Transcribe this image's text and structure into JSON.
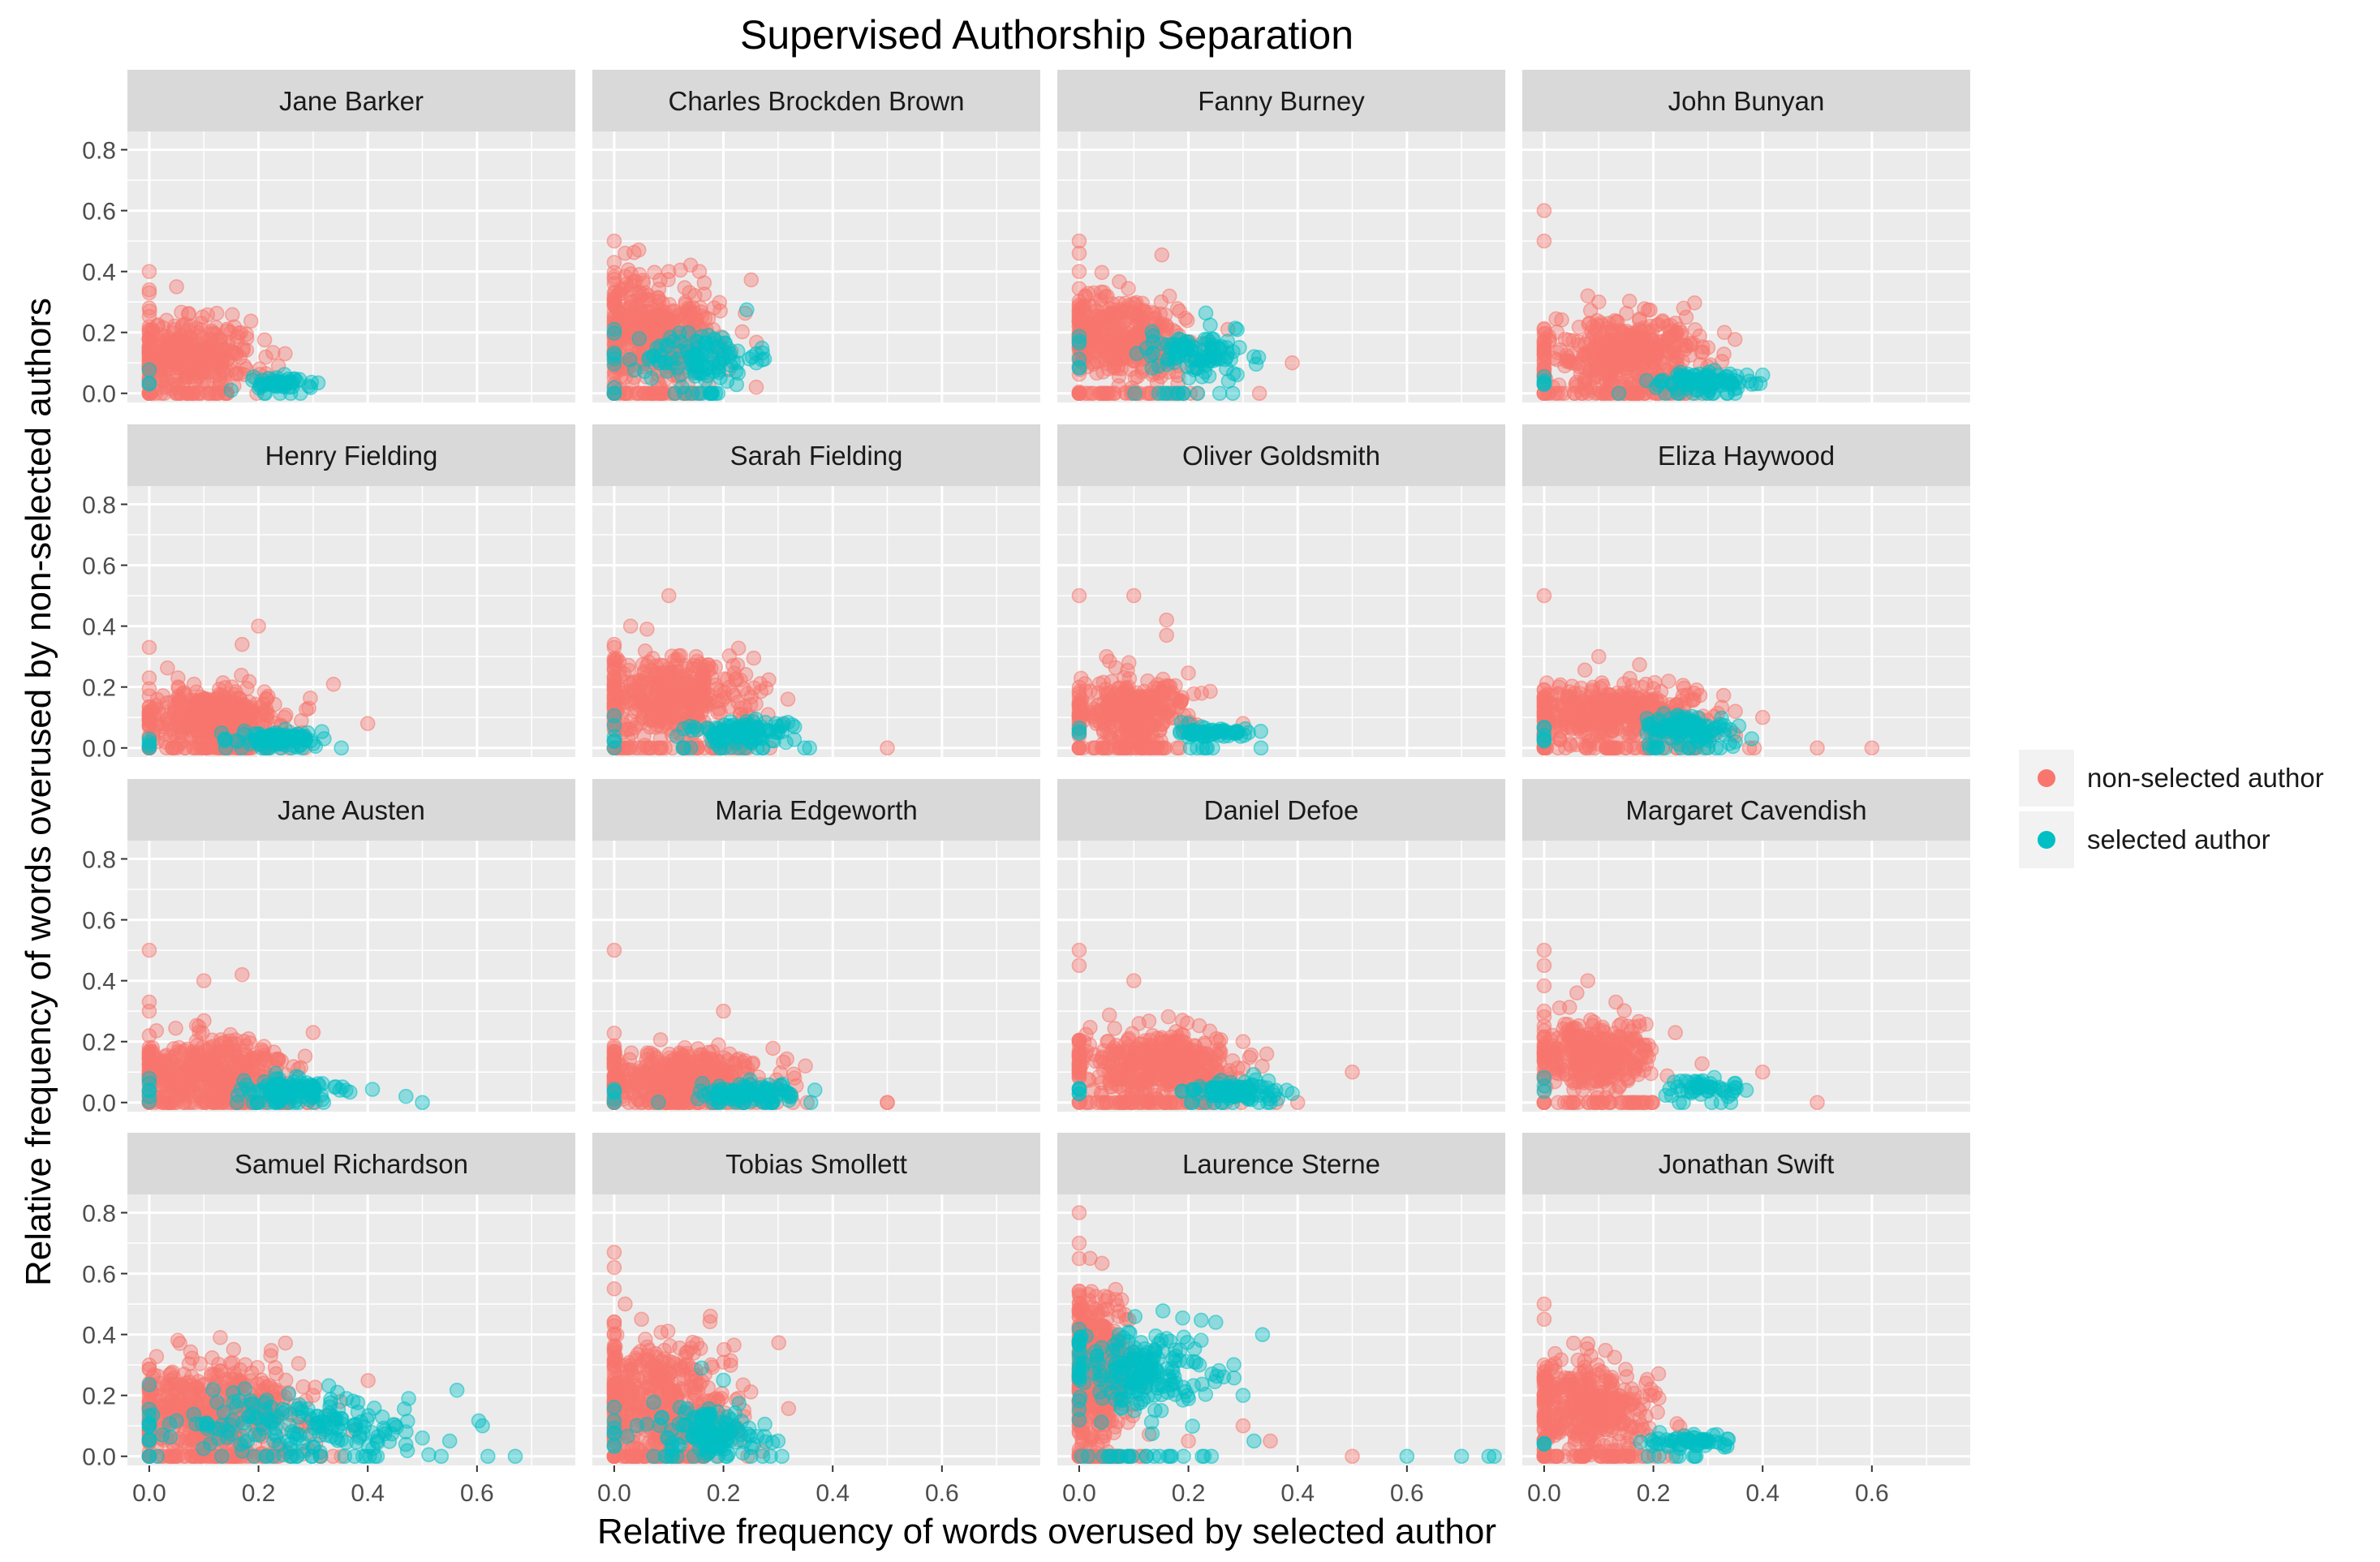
{
  "chart_data": {
    "type": "scatter",
    "title": "Supervised Authorship Separation",
    "xlabel": "Relative frequency of words overused by selected author",
    "ylabel": "Relative frequency of words overused by non-selected authors",
    "facet_layout": "4 x 4 grid, shared axes",
    "xlim": [
      -0.04,
      0.78
    ],
    "ylim": [
      -0.03,
      0.86
    ],
    "x_ticks": [
      "0.0",
      "0.2",
      "0.4",
      "0.6"
    ],
    "y_ticks": [
      "0.0",
      "0.2",
      "0.4",
      "0.6",
      "0.8"
    ],
    "grid": true,
    "legend_position": "right",
    "colors": {
      "non_selected": "#F8766D",
      "selected": "#00BFC4",
      "panel_bg": "#EBEBEB",
      "strip_bg": "#D9D9D9"
    },
    "legend": [
      {
        "label": "non-selected author",
        "color": "#F8766D"
      },
      {
        "label": "selected author",
        "color": "#00BFC4"
      }
    ],
    "facets": [
      {
        "label": "Jane Barker",
        "non_selected": {
          "cloud": [
            0.07,
            0.13,
            0.06,
            0.055,
            350
          ],
          "outliers": [
            [
              0,
              0.4
            ],
            [
              0,
              0.34
            ],
            [
              0,
              0.33
            ],
            [
              0.05,
              0.35
            ],
            [
              0,
              0.28
            ],
            [
              0.16,
              0.13
            ],
            [
              0.22,
              0.05
            ]
          ]
        },
        "selected": {
          "cloud": [
            0.24,
            0.035,
            0.025,
            0.01,
            45
          ],
          "outliers": [
            [
              0.15,
              0.01
            ],
            [
              0.27,
              0.04
            ]
          ]
        }
      },
      {
        "label": "Charles Brockden Brown",
        "non_selected": {
          "cloud": [
            0.07,
            0.2,
            0.06,
            0.09,
            380
          ],
          "outliers": [
            [
              0,
              0.5
            ],
            [
              0.02,
              0.46
            ],
            [
              0,
              0.43
            ],
            [
              0.1,
              0.4
            ],
            [
              0,
              0.36
            ],
            [
              0.26,
              0.02
            ]
          ]
        },
        "selected": {
          "cloud": [
            0.16,
            0.12,
            0.05,
            0.045,
            110
          ],
          "outliers": [
            [
              0.26,
              0.1
            ],
            [
              0.26,
              0.13
            ],
            [
              0.19,
              0.0
            ]
          ]
        }
      },
      {
        "label": "Fanny Burney",
        "non_selected": {
          "cloud": [
            0.08,
            0.18,
            0.06,
            0.07,
            380
          ],
          "outliers": [
            [
              0,
              0.5
            ],
            [
              0,
              0.46
            ],
            [
              0,
              0.4
            ],
            [
              0.39,
              0.1
            ],
            [
              0.33,
              0.0
            ],
            [
              0.15,
              0.3
            ]
          ]
        },
        "selected": {
          "cloud": [
            0.21,
            0.13,
            0.045,
            0.035,
            100
          ],
          "outliers": [
            [
              0.32,
              0.12
            ],
            [
              0.27,
              0.15
            ],
            [
              0.23,
              0.07
            ]
          ]
        }
      },
      {
        "label": "John Bunyan",
        "non_selected": {
          "cloud": [
            0.15,
            0.13,
            0.07,
            0.06,
            420
          ],
          "outliers": [
            [
              0,
              0.6
            ],
            [
              0,
              0.5
            ],
            [
              0.26,
              0.25
            ],
            [
              0.33,
              0.2
            ],
            [
              0.3,
              0.15
            ],
            [
              0.08,
              0.32
            ],
            [
              0.1,
              0.3
            ]
          ]
        },
        "selected": {
          "cloud": [
            0.28,
            0.04,
            0.045,
            0.015,
            90
          ],
          "outliers": [
            [
              0.4,
              0.06
            ],
            [
              0.38,
              0.03
            ]
          ]
        }
      },
      {
        "label": "Henry Fielding",
        "non_selected": {
          "cloud": [
            0.12,
            0.1,
            0.06,
            0.05,
            380
          ],
          "outliers": [
            [
              0,
              0.33
            ],
            [
              0,
              0.23
            ],
            [
              0.2,
              0.4
            ],
            [
              0.17,
              0.34
            ],
            [
              0.4,
              0.08
            ],
            [
              0.28,
              0.05
            ]
          ]
        },
        "selected": {
          "cloud": [
            0.24,
            0.03,
            0.04,
            0.015,
            80
          ],
          "outliers": [
            [
              0.32,
              0.03
            ],
            [
              0.29,
              0.05
            ]
          ]
        }
      },
      {
        "label": "Sarah Fielding",
        "non_selected": {
          "cloud": [
            0.11,
            0.16,
            0.07,
            0.07,
            400
          ],
          "outliers": [
            [
              0.1,
              0.5
            ],
            [
              0.03,
              0.4
            ],
            [
              0.06,
              0.39
            ],
            [
              0,
              0.33
            ],
            [
              0.5,
              0.0
            ],
            [
              0.15,
              0.3
            ]
          ]
        },
        "selected": {
          "cloud": [
            0.23,
            0.05,
            0.05,
            0.02,
            100
          ],
          "outliers": [
            [
              0.3,
              0.05
            ],
            [
              0.31,
              0.08
            ],
            [
              0.14,
              0.0
            ]
          ]
        }
      },
      {
        "label": "Oliver Goldsmith",
        "non_selected": {
          "cloud": [
            0.1,
            0.12,
            0.05,
            0.055,
            330
          ],
          "outliers": [
            [
              0,
              0.5
            ],
            [
              0.1,
              0.5
            ],
            [
              0.16,
              0.42
            ],
            [
              0.16,
              0.37
            ],
            [
              0.05,
              0.3
            ],
            [
              0.3,
              0.08
            ]
          ]
        },
        "selected": {
          "cloud": [
            0.24,
            0.05,
            0.035,
            0.01,
            55
          ],
          "outliers": [
            [
              0.31,
              0.05
            ],
            [
              0.2,
              0.08
            ]
          ]
        }
      },
      {
        "label": "Eliza Haywood",
        "non_selected": {
          "cloud": [
            0.13,
            0.11,
            0.08,
            0.05,
            400
          ],
          "outliers": [
            [
              0,
              0.5
            ],
            [
              0.1,
              0.3
            ],
            [
              0.4,
              0.1
            ],
            [
              0.5,
              0.0
            ],
            [
              0.6,
              0.0
            ],
            [
              0.35,
              0.12
            ]
          ]
        },
        "selected": {
          "cloud": [
            0.26,
            0.06,
            0.04,
            0.025,
            100
          ],
          "outliers": [
            [
              0.35,
              0.02
            ],
            [
              0.38,
              0.03
            ],
            [
              0.33,
              0.06
            ]
          ]
        }
      },
      {
        "label": "Jane Austen",
        "non_selected": {
          "cloud": [
            0.11,
            0.1,
            0.07,
            0.055,
            400
          ],
          "outliers": [
            [
              0,
              0.5
            ],
            [
              0,
              0.33
            ],
            [
              0,
              0.3
            ],
            [
              0.1,
              0.4
            ],
            [
              0.17,
              0.42
            ],
            [
              0.3,
              0.23
            ]
          ]
        },
        "selected": {
          "cloud": [
            0.26,
            0.04,
            0.045,
            0.02,
            100
          ],
          "outliers": [
            [
              0.47,
              0.02
            ],
            [
              0.5,
              0.0
            ],
            [
              0.36,
              0.04
            ]
          ]
        }
      },
      {
        "label": "Maria Edgeworth",
        "non_selected": {
          "cloud": [
            0.13,
            0.08,
            0.08,
            0.045,
            420
          ],
          "outliers": [
            [
              0,
              0.5
            ],
            [
              0.2,
              0.3
            ],
            [
              0.5,
              0.0
            ],
            [
              0.5,
              0.0
            ],
            [
              0.35,
              0.12
            ],
            [
              0.33,
              0.08
            ]
          ]
        },
        "selected": {
          "cloud": [
            0.24,
            0.03,
            0.045,
            0.015,
            90
          ],
          "outliers": [
            [
              0.36,
              0.0
            ],
            [
              0.32,
              0.02
            ]
          ]
        }
      },
      {
        "label": "Daniel Defoe",
        "non_selected": {
          "cloud": [
            0.15,
            0.12,
            0.07,
            0.055,
            430
          ],
          "outliers": [
            [
              0,
              0.5
            ],
            [
              0,
              0.45
            ],
            [
              0.1,
              0.4
            ],
            [
              0.5,
              0.1
            ],
            [
              0.4,
              0.0
            ],
            [
              0.3,
              0.2
            ]
          ]
        },
        "selected": {
          "cloud": [
            0.28,
            0.04,
            0.04,
            0.015,
            85
          ],
          "outliers": [
            [
              0.36,
              0.04
            ],
            [
              0.38,
              0.04
            ]
          ]
        }
      },
      {
        "label": "Margaret Cavendish",
        "non_selected": {
          "cloud": [
            0.1,
            0.16,
            0.05,
            0.06,
            330
          ],
          "outliers": [
            [
              0,
              0.5
            ],
            [
              0,
              0.45
            ],
            [
              0.08,
              0.4
            ],
            [
              0.06,
              0.36
            ],
            [
              0.4,
              0.1
            ],
            [
              0.5,
              0.0
            ]
          ]
        },
        "selected": {
          "cloud": [
            0.3,
            0.05,
            0.035,
            0.015,
            45
          ],
          "outliers": [
            [
              0.37,
              0.04
            ],
            [
              0.25,
              0.07
            ]
          ]
        }
      },
      {
        "label": "Samuel Richardson",
        "non_selected": {
          "cloud": [
            0.12,
            0.15,
            0.08,
            0.08,
            450
          ],
          "outliers": [
            [
              0,
              0.3
            ],
            [
              0.13,
              0.39
            ],
            [
              0.3,
              0.2
            ],
            [
              0.35,
              0.18
            ],
            [
              0.25,
              0.25
            ]
          ]
        },
        "selected": {
          "cloud": [
            0.28,
            0.11,
            0.1,
            0.055,
            170
          ],
          "outliers": [
            [
              0.61,
              0.1
            ],
            [
              0.62,
              0.0
            ],
            [
              0.67,
              0.0
            ],
            [
              0.55,
              0.05
            ],
            [
              0.5,
              0.06
            ],
            [
              0.47,
              0.08
            ]
          ]
        }
      },
      {
        "label": "Tobias Smollett",
        "non_selected": {
          "cloud": [
            0.08,
            0.18,
            0.07,
            0.1,
            420
          ],
          "outliers": [
            [
              0,
              0.67
            ],
            [
              0,
              0.62
            ],
            [
              0,
              0.55
            ],
            [
              0.02,
              0.5
            ],
            [
              0.05,
              0.45
            ],
            [
              0.2,
              0.08
            ]
          ]
        },
        "selected": {
          "cloud": [
            0.18,
            0.08,
            0.055,
            0.04,
            120
          ],
          "outliers": [
            [
              0.3,
              0.05
            ],
            [
              0.16,
              0.29
            ],
            [
              0.2,
              0.25
            ]
          ]
        }
      },
      {
        "label": "Laurence Sterne",
        "non_selected": {
          "cloud": [
            0.03,
            0.28,
            0.03,
            0.13,
            420
          ],
          "outliers": [
            [
              0,
              0.8
            ],
            [
              0,
              0.7
            ],
            [
              0.02,
              0.65
            ],
            [
              0.5,
              0.0
            ],
            [
              0.35,
              0.05
            ],
            [
              0.3,
              0.1
            ],
            [
              0.2,
              0.05
            ]
          ]
        },
        "selected": {
          "cloud": [
            0.11,
            0.28,
            0.07,
            0.07,
            200
          ],
          "outliers": [
            [
              0.6,
              0.0
            ],
            [
              0.7,
              0.0
            ],
            [
              0.75,
              0.0
            ],
            [
              0.76,
              0.0
            ],
            [
              0.3,
              0.2
            ],
            [
              0.25,
              0.44
            ],
            [
              0.32,
              0.05
            ]
          ]
        }
      },
      {
        "label": "Jonathan Swift",
        "non_selected": {
          "cloud": [
            0.08,
            0.15,
            0.06,
            0.08,
            380
          ],
          "outliers": [
            [
              0,
              0.5
            ],
            [
              0,
              0.45
            ],
            [
              0.08,
              0.37
            ],
            [
              0.2,
              0.2
            ],
            [
              0.15,
              0.18
            ]
          ]
        },
        "selected": {
          "cloud": [
            0.26,
            0.05,
            0.04,
            0.01,
            55
          ],
          "outliers": [
            [
              0.33,
              0.03
            ],
            [
              0.3,
              0.05
            ]
          ]
        }
      }
    ]
  }
}
